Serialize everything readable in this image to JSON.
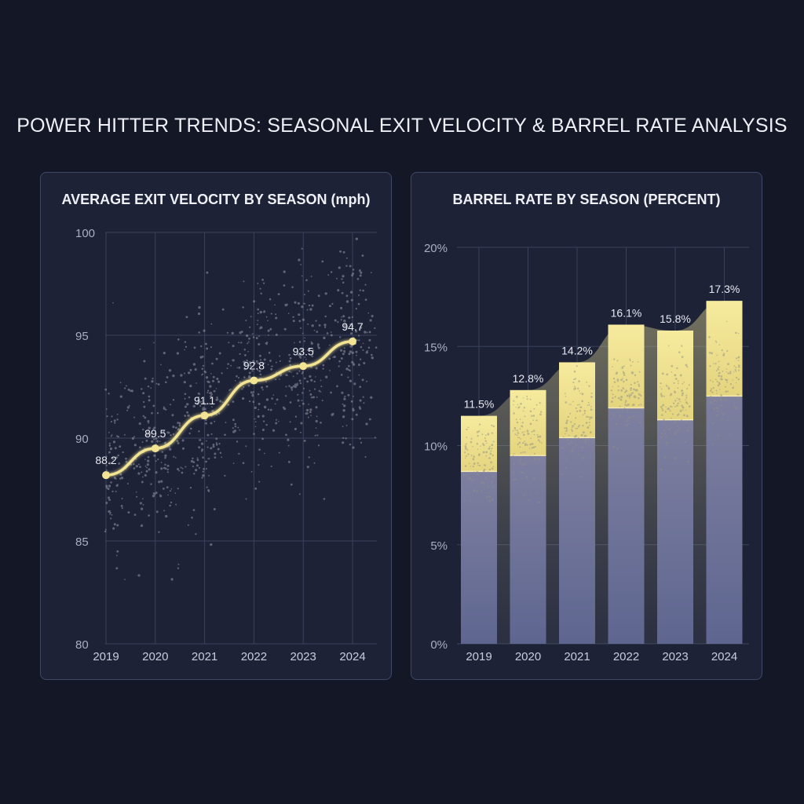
{
  "page": {
    "title": "POWER HITTER TRENDS: SEASONAL EXIT VELOCITY & BARREL RATE ANALYSIS"
  },
  "colors": {
    "background": "#141826",
    "panel": "#1d2237",
    "panel_border": "#3f4866",
    "accent_yellow": "#f2e492",
    "bar_lower": "#6b7199",
    "grid": "#3a425c",
    "scatter": "#9a9aa6"
  },
  "chart_data": [
    {
      "type": "line",
      "title": "AVERAGE EXIT VELOCITY BY SEASON (mph)",
      "xlabel": "",
      "ylabel": "",
      "categories": [
        "2019",
        "2020",
        "2021",
        "2022",
        "2023",
        "2024"
      ],
      "values": [
        88.2,
        89.5,
        91.1,
        92.8,
        93.5,
        94.7
      ],
      "data_labels": [
        "88.2",
        "89.5",
        "91.1",
        "92.8",
        "93.5",
        "94.7"
      ],
      "ylim": [
        80,
        100
      ],
      "yticks": [
        "80",
        "85",
        "90",
        "95",
        "100"
      ],
      "ytick_values": [
        80,
        85,
        90,
        95,
        100
      ],
      "grid": true,
      "overlay": "scatter cloud of individual batted balls around each season"
    },
    {
      "type": "bar",
      "title": "BARREL RATE BY SEASON (PERCENT)",
      "xlabel": "",
      "ylabel": "",
      "categories": [
        "2019",
        "2020",
        "2021",
        "2022",
        "2023",
        "2024"
      ],
      "values": [
        11.5,
        12.8,
        14.2,
        16.1,
        15.8,
        17.3
      ],
      "data_labels": [
        "11.5%",
        "12.8%",
        "14.2%",
        "16.1%",
        "15.8%",
        "17.3%"
      ],
      "lower_segment_values": [
        8.7,
        9.5,
        10.4,
        11.9,
        11.3,
        12.5
      ],
      "ylim": [
        0,
        20
      ],
      "yticks": [
        "0%",
        "5%",
        "10%",
        "15%",
        "20%"
      ],
      "ytick_values": [
        0,
        5,
        10,
        15,
        20
      ],
      "grid": true
    }
  ]
}
